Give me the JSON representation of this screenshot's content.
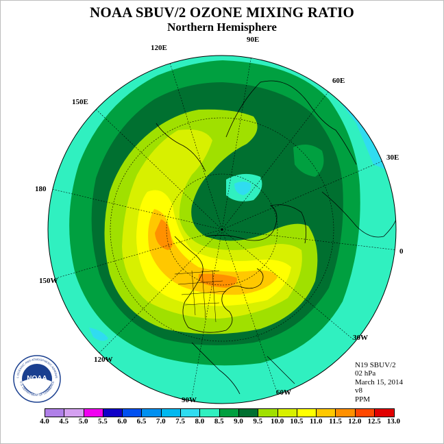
{
  "title": "NOAA SBUV/2 OZONE MIXING RATIO",
  "subtitle": "Northern Hemisphere",
  "info": {
    "satellite": "N19 SBUV/2",
    "level": "02 hPa",
    "date": "March 15, 2014",
    "version": "v8",
    "units": "PPM"
  },
  "logo": {
    "text": "NOAA",
    "ring_top": "NATIONAL OCEANIC AND ATMOSPHERIC ADMINISTRATION",
    "ring_bottom": "U.S. DEPARTMENT OF COMMERCE",
    "icon": "noaa-logo"
  },
  "longitude_labels": [
    "90E",
    "60E",
    "30E",
    "0",
    "30W",
    "60W",
    "90W",
    "120W",
    "150W",
    "180",
    "150E",
    "120E"
  ],
  "colorbar": {
    "labels": [
      "4.0",
      "4.5",
      "5.0",
      "5.5",
      "6.0",
      "6.5",
      "7.0",
      "7.5",
      "8.0",
      "8.5",
      "9.0",
      "9.5",
      "10.0",
      "10.5",
      "11.0",
      "11.5",
      "12.0",
      "12.5",
      "13.0"
    ],
    "colors": [
      "#b080e8",
      "#d4a0f0",
      "#f000f0",
      "#1000c8",
      "#0050f0",
      "#0090f0",
      "#00b8f0",
      "#30dcf0",
      "#30f0c0",
      "#00a040",
      "#007030",
      "#a0e000",
      "#d8f000",
      "#ffff00",
      "#ffc800",
      "#ff9000",
      "#ff4800",
      "#e00000",
      "#8b4513"
    ]
  }
}
